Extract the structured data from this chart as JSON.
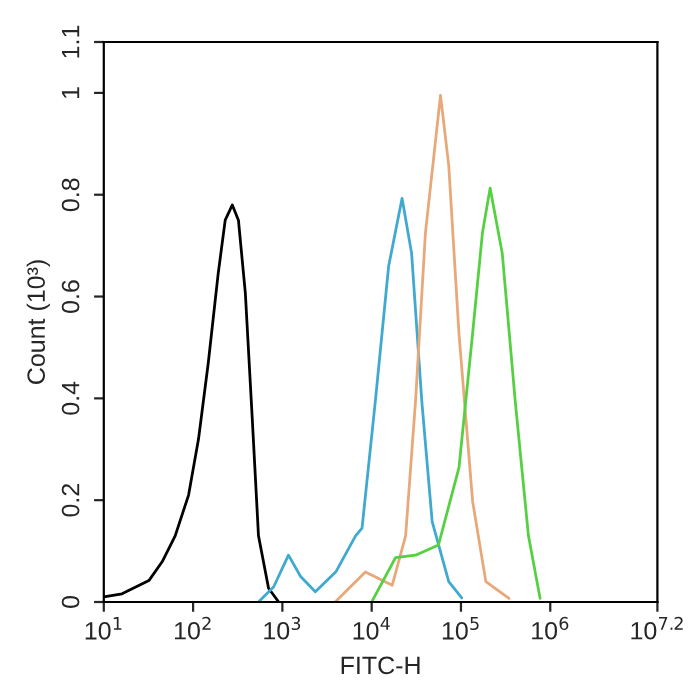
{
  "chart_data": {
    "type": "line",
    "xlabel": "FITC-H",
    "ylabel": "Count (10³)",
    "log": "x",
    "grid": false,
    "legend": false,
    "marker": "none",
    "line_style": "solid",
    "xlim": [
      10,
      15848932
    ],
    "xticks": [
      {
        "value": 10,
        "label": "10$^{1}$"
      },
      {
        "value": 100,
        "label": "10$^{2}$"
      },
      {
        "value": 1000,
        "label": "10$^{3}$"
      },
      {
        "value": 10000,
        "label": "10$^{4}$"
      },
      {
        "value": 100000,
        "label": "10$^{5}$"
      },
      {
        "value": 1000000,
        "label": "10$^{6}$"
      },
      {
        "value": 15848932,
        "label": "10$^{7.2}$"
      }
    ],
    "ylim": [
      0,
      1.1
    ],
    "yticks": [
      0,
      0.2,
      0.4,
      0.6,
      0.8,
      1,
      1.1
    ],
    "series": [
      {
        "color": "#000000",
        "x": [
          10,
          16,
          32,
          45,
          63,
          89,
          115,
          148,
          191,
          229,
          275,
          322,
          385,
          457,
          540,
          700,
          910
        ],
        "values": [
          0.01,
          0.016,
          0.042,
          0.079,
          0.13,
          0.21,
          0.32,
          0.47,
          0.645,
          0.75,
          0.78,
          0.75,
          0.606,
          0.369,
          0.13,
          0.027,
          0
        ]
      },
      {
        "color": "#3fa9d0",
        "x": [
          540,
          800,
          1170,
          1600,
          2340,
          4000,
          6600,
          7800,
          11000,
          15500,
          21900,
          28000,
          36400,
          47600,
          73000,
          102000
        ],
        "values": [
          0,
          0.03,
          0.092,
          0.05,
          0.02,
          0.06,
          0.13,
          0.145,
          0.395,
          0.66,
          0.793,
          0.685,
          0.395,
          0.158,
          0.04,
          0.008
        ]
      },
      {
        "color": "#e8a878",
        "x": [
          3900,
          8500,
          17000,
          24000,
          31000,
          40000,
          59000,
          73000,
          95000,
          135000,
          190000,
          345000
        ],
        "values": [
          0,
          0.059,
          0.033,
          0.13,
          0.395,
          0.725,
          0.995,
          0.857,
          0.527,
          0.198,
          0.04,
          0.007
        ]
      },
      {
        "color": "#55d040",
        "x": [
          10000,
          18500,
          31000,
          56000,
          95000,
          135000,
          174000,
          212000,
          290000,
          405000,
          570000,
          770000
        ],
        "values": [
          0,
          0.087,
          0.092,
          0.112,
          0.264,
          0.527,
          0.725,
          0.813,
          0.685,
          0.395,
          0.13,
          0.007
        ]
      }
    ]
  }
}
